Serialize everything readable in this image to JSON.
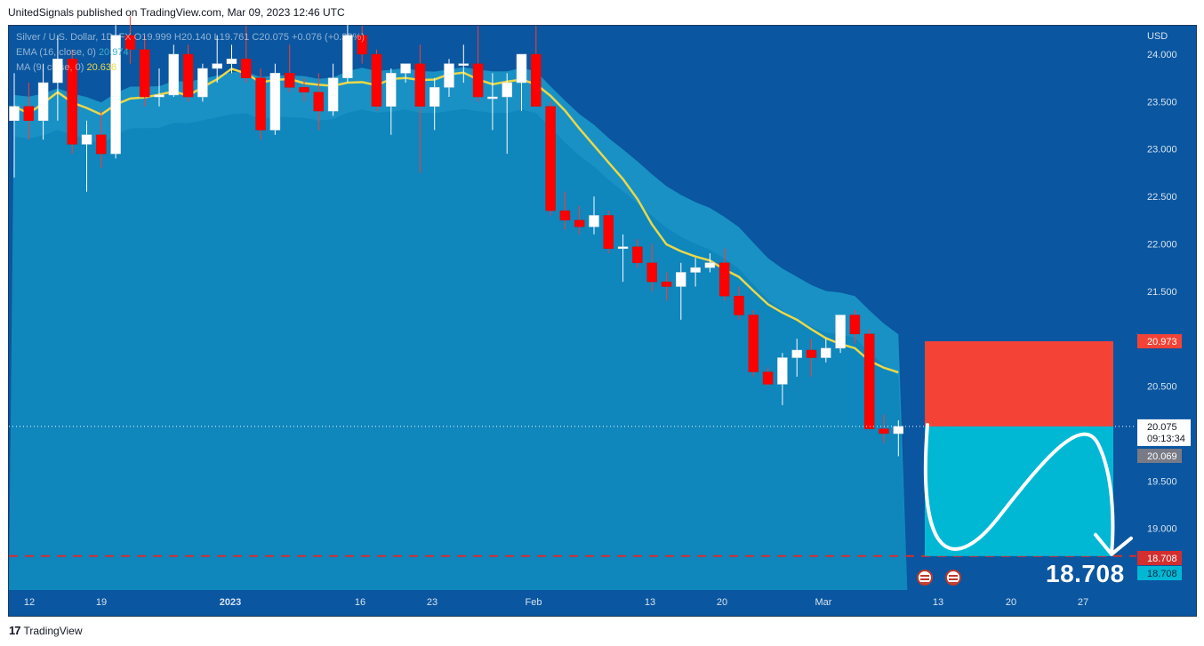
{
  "header": {
    "text": "UnitedSignals published on TradingView.com, Mar 09, 2023 12:46 UTC"
  },
  "legend": {
    "symbol": "Silver / U.S. Dollar, 1D, FX",
    "ohlc": "O19.999  H20.140  L19.761  C20.075  +0.076 (+0.38%)",
    "ema_label": "EMA (16, close, 0)",
    "ema_value": "20.974",
    "ma_label": "MA (9, close, 0)",
    "ma_value": "20.638"
  },
  "footer": {
    "logo": "17",
    "brand": "TradingView"
  },
  "target_big": "18.708",
  "colors": {
    "background": "#0a56a0",
    "bull": "#ffffff",
    "bear": "#ff0000",
    "ema_band": "#1fa6d2",
    "ma_line": "#e8d84a",
    "stop_zone": "#f44336",
    "target_zone": "#00b8d4",
    "dashed_level": "#d32f2f"
  },
  "chart_data": {
    "type": "candlestick",
    "currency_label": "USD",
    "ylim": [
      18.35,
      24.3
    ],
    "y_ticks": [
      "24.000",
      "23.500",
      "23.000",
      "22.500",
      "22.000",
      "21.500",
      "20.500",
      "19.500",
      "19.000"
    ],
    "x_ticks": [
      "12",
      "19",
      "2023",
      "16",
      "23",
      "Feb",
      "13",
      "20",
      "Mar",
      "13",
      "20",
      "27"
    ],
    "price_labels": {
      "stop": "20.973",
      "current": "20.075",
      "countdown": "09:13:34",
      "prev": "20.069",
      "target_red": "18.708",
      "target_teal": "18.708"
    },
    "levels": {
      "stop": 20.973,
      "entry": 20.075,
      "target": 18.708
    },
    "candles": [
      {
        "o": 23.3,
        "h": 23.8,
        "l": 22.7,
        "c": 23.45
      },
      {
        "o": 23.45,
        "h": 23.7,
        "l": 23.1,
        "c": 23.3
      },
      {
        "o": 23.3,
        "h": 23.9,
        "l": 23.1,
        "c": 23.7
      },
      {
        "o": 23.7,
        "h": 24.2,
        "l": 23.3,
        "c": 23.95
      },
      {
        "o": 23.95,
        "h": 24.05,
        "l": 22.95,
        "c": 23.05
      },
      {
        "o": 23.05,
        "h": 23.3,
        "l": 22.55,
        "c": 23.15
      },
      {
        "o": 23.15,
        "h": 23.4,
        "l": 22.8,
        "c": 22.95
      },
      {
        "o": 22.95,
        "h": 24.4,
        "l": 22.9,
        "c": 24.2
      },
      {
        "o": 24.2,
        "h": 24.4,
        "l": 23.9,
        "c": 24.05
      },
      {
        "o": 24.05,
        "h": 24.2,
        "l": 23.45,
        "c": 23.55
      },
      {
        "o": 23.55,
        "h": 23.85,
        "l": 23.45,
        "c": 23.57
      },
      {
        "o": 23.57,
        "h": 24.1,
        "l": 23.55,
        "c": 24.0
      },
      {
        "o": 24.0,
        "h": 24.1,
        "l": 23.5,
        "c": 23.55
      },
      {
        "o": 23.55,
        "h": 23.9,
        "l": 23.5,
        "c": 23.85
      },
      {
        "o": 23.85,
        "h": 24.2,
        "l": 23.7,
        "c": 23.9
      },
      {
        "o": 23.9,
        "h": 24.1,
        "l": 23.8,
        "c": 23.95
      },
      {
        "o": 23.95,
        "h": 24.3,
        "l": 23.7,
        "c": 23.75
      },
      {
        "o": 23.75,
        "h": 23.85,
        "l": 23.1,
        "c": 23.2
      },
      {
        "o": 23.2,
        "h": 23.9,
        "l": 23.15,
        "c": 23.8
      },
      {
        "o": 23.8,
        "h": 24.1,
        "l": 23.6,
        "c": 23.65
      },
      {
        "o": 23.65,
        "h": 23.75,
        "l": 23.5,
        "c": 23.6
      },
      {
        "o": 23.6,
        "h": 23.8,
        "l": 23.2,
        "c": 23.4
      },
      {
        "o": 23.4,
        "h": 23.9,
        "l": 23.35,
        "c": 23.75
      },
      {
        "o": 23.75,
        "h": 24.4,
        "l": 23.7,
        "c": 24.2
      },
      {
        "o": 24.2,
        "h": 24.3,
        "l": 23.9,
        "c": 24.0
      },
      {
        "o": 24.0,
        "h": 24.05,
        "l": 23.4,
        "c": 23.45
      },
      {
        "o": 23.45,
        "h": 23.85,
        "l": 23.15,
        "c": 23.8
      },
      {
        "o": 23.8,
        "h": 23.9,
        "l": 23.7,
        "c": 23.9
      },
      {
        "o": 23.9,
        "h": 24.1,
        "l": 22.75,
        "c": 23.45
      },
      {
        "o": 23.45,
        "h": 23.75,
        "l": 23.2,
        "c": 23.65
      },
      {
        "o": 23.65,
        "h": 23.95,
        "l": 23.55,
        "c": 23.9
      },
      {
        "o": 23.9,
        "h": 24.1,
        "l": 23.7,
        "c": 23.9
      },
      {
        "o": 23.9,
        "h": 24.3,
        "l": 23.5,
        "c": 23.55
      },
      {
        "o": 23.55,
        "h": 23.8,
        "l": 23.2,
        "c": 23.55
      },
      {
        "o": 23.55,
        "h": 23.8,
        "l": 22.95,
        "c": 23.7
      },
      {
        "o": 23.7,
        "h": 24.0,
        "l": 23.4,
        "c": 24.0
      },
      {
        "o": 24.0,
        "h": 24.3,
        "l": 23.45,
        "c": 23.45
      },
      {
        "o": 23.45,
        "h": 23.5,
        "l": 22.3,
        "c": 22.35
      },
      {
        "o": 22.35,
        "h": 22.55,
        "l": 22.15,
        "c": 22.25
      },
      {
        "o": 22.25,
        "h": 22.4,
        "l": 22.1,
        "c": 22.18
      },
      {
        "o": 22.18,
        "h": 22.5,
        "l": 22.1,
        "c": 22.3
      },
      {
        "o": 22.3,
        "h": 22.35,
        "l": 21.9,
        "c": 21.95
      },
      {
        "o": 21.95,
        "h": 22.1,
        "l": 21.6,
        "c": 21.97
      },
      {
        "o": 21.97,
        "h": 22.05,
        "l": 21.75,
        "c": 21.8
      },
      {
        "o": 21.8,
        "h": 22.0,
        "l": 21.5,
        "c": 21.6
      },
      {
        "o": 21.6,
        "h": 21.7,
        "l": 21.4,
        "c": 21.55
      },
      {
        "o": 21.55,
        "h": 21.8,
        "l": 21.2,
        "c": 21.7
      },
      {
        "o": 21.7,
        "h": 21.85,
        "l": 21.55,
        "c": 21.75
      },
      {
        "o": 21.75,
        "h": 21.9,
        "l": 21.7,
        "c": 21.8
      },
      {
        "o": 21.8,
        "h": 21.95,
        "l": 21.4,
        "c": 21.45
      },
      {
        "o": 21.45,
        "h": 21.55,
        "l": 21.2,
        "c": 21.25
      },
      {
        "o": 21.25,
        "h": 21.3,
        "l": 20.6,
        "c": 20.65
      },
      {
        "o": 20.65,
        "h": 20.7,
        "l": 20.5,
        "c": 20.52
      },
      {
        "o": 20.52,
        "h": 20.85,
        "l": 20.3,
        "c": 20.8
      },
      {
        "o": 20.8,
        "h": 21.0,
        "l": 20.6,
        "c": 20.88
      },
      {
        "o": 20.88,
        "h": 21.0,
        "l": 20.6,
        "c": 20.8
      },
      {
        "o": 20.8,
        "h": 21.0,
        "l": 20.75,
        "c": 20.9
      },
      {
        "o": 20.9,
        "h": 21.25,
        "l": 20.85,
        "c": 21.25
      },
      {
        "o": 21.25,
        "h": 21.3,
        "l": 20.95,
        "c": 21.05
      },
      {
        "o": 21.05,
        "h": 21.1,
        "l": 20.05,
        "c": 20.05
      },
      {
        "o": 20.05,
        "h": 20.2,
        "l": 19.9,
        "c": 20.0
      },
      {
        "o": 19.999,
        "h": 20.14,
        "l": 19.761,
        "c": 20.075
      }
    ]
  }
}
